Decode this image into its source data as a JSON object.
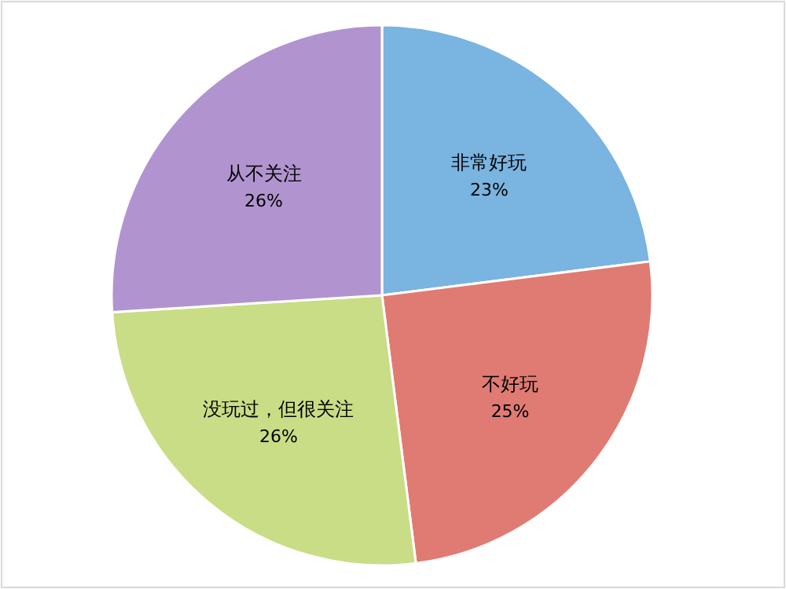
{
  "chart_data": {
    "type": "pie",
    "categories": [
      "非常好玩",
      "不好玩",
      "没玩过，但很关注",
      "从不关注"
    ],
    "values": [
      23,
      25,
      26,
      26
    ],
    "colors": [
      "#7ab4e0",
      "#e07b74",
      "#c9dd86",
      "#b194cf"
    ],
    "value_labels": [
      "23%",
      "25%",
      "26%",
      "26%"
    ]
  }
}
